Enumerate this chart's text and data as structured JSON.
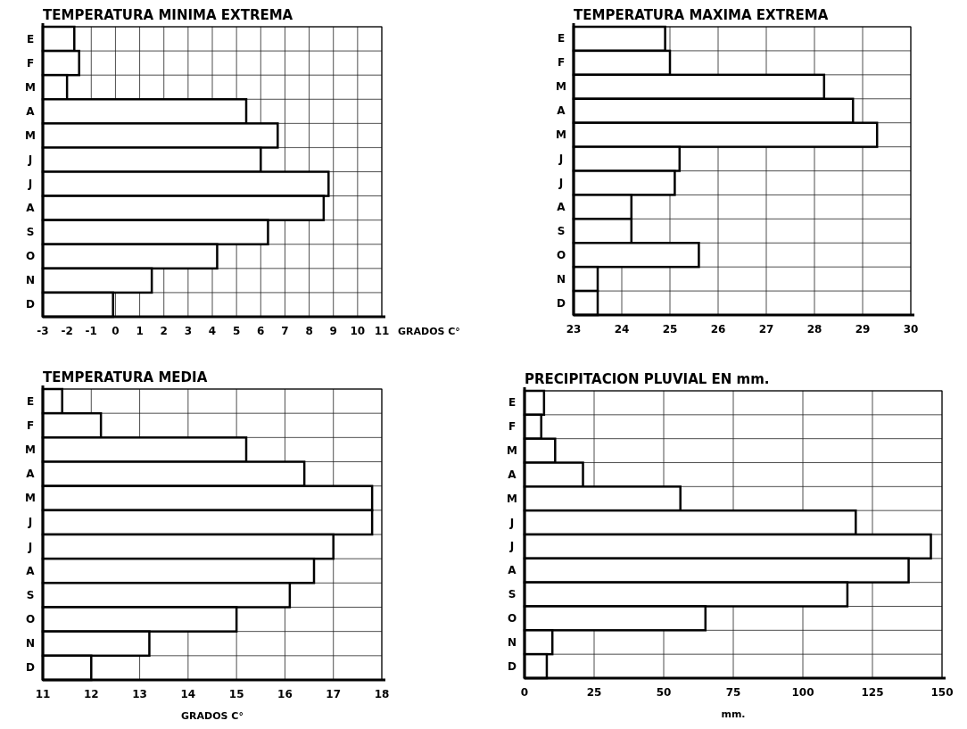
{
  "chart_data": [
    {
      "type": "bar",
      "orientation": "horizontal",
      "title": "TEMPERATURA MINIMA EXTREMA",
      "xlabel": "GRADOS C°",
      "categories": [
        "E",
        "F",
        "M",
        "A",
        "M",
        "J",
        "J",
        "A",
        "S",
        "O",
        "N",
        "D"
      ],
      "base": [
        -3,
        -3,
        -3,
        -3,
        -3,
        -3,
        -3,
        -3,
        -3,
        -3,
        -3,
        -3
      ],
      "values": [
        1.3,
        1.5,
        1.0,
        8.4,
        9.7,
        9.0,
        11.8,
        11.6,
        9.3,
        7.2,
        4.5,
        2.9
      ],
      "color": "#ffffff",
      "xlim": [
        -3,
        11
      ],
      "xticks": [
        -3,
        -2,
        -1,
        0,
        1,
        2,
        3,
        4,
        5,
        6,
        7,
        8,
        9,
        10,
        11
      ],
      "grid": true
    },
    {
      "type": "bar",
      "orientation": "horizontal",
      "title": "TEMPERATURA MAXIMA EXTREMA",
      "categories": [
        "E",
        "F",
        "M",
        "A",
        "M",
        "J",
        "J",
        "A",
        "S",
        "O",
        "N",
        "D"
      ],
      "base": [
        23,
        23,
        23,
        23,
        23,
        23,
        23,
        23,
        23,
        23,
        23,
        23
      ],
      "values": [
        1.9,
        2.0,
        5.2,
        5.8,
        6.3,
        2.2,
        2.1,
        1.2,
        1.2,
        2.6,
        0.5,
        0.5
      ],
      "color": "#ffffff",
      "xlim": [
        23,
        30
      ],
      "xticks": [
        23,
        24,
        25,
        26,
        27,
        28,
        29,
        30
      ],
      "grid": true
    },
    {
      "type": "bar",
      "orientation": "horizontal",
      "title": "TEMPERATURA MEDIA",
      "xlabel": "GRADOS C°",
      "categories": [
        "E",
        "F",
        "M",
        "A",
        "M",
        "J",
        "J",
        "A",
        "S",
        "O",
        "N",
        "D"
      ],
      "base": [
        11,
        11,
        11,
        11,
        11,
        11,
        11,
        11,
        11,
        11,
        11,
        11
      ],
      "values": [
        0.4,
        1.2,
        4.2,
        5.4,
        6.8,
        6.8,
        6.0,
        5.6,
        5.1,
        4.0,
        2.2,
        1.0
      ],
      "color": "#ffffff",
      "xlim": [
        11,
        18
      ],
      "xticks": [
        11,
        12,
        13,
        14,
        15,
        16,
        17,
        18
      ],
      "grid": true
    },
    {
      "type": "bar",
      "orientation": "horizontal",
      "title": "PRECIPITACION PLUVIAL EN mm.",
      "xlabel": "mm.",
      "categories": [
        "E",
        "F",
        "M",
        "A",
        "M",
        "J",
        "J",
        "A",
        "S",
        "O",
        "N",
        "D"
      ],
      "values": [
        7,
        6,
        11,
        21,
        56,
        119,
        146,
        138,
        116,
        65,
        10,
        8
      ],
      "color": "#ffffff",
      "xlim": [
        0,
        150
      ],
      "xticks": [
        0,
        25,
        50,
        75,
        100,
        125,
        150
      ],
      "grid": true
    }
  ]
}
